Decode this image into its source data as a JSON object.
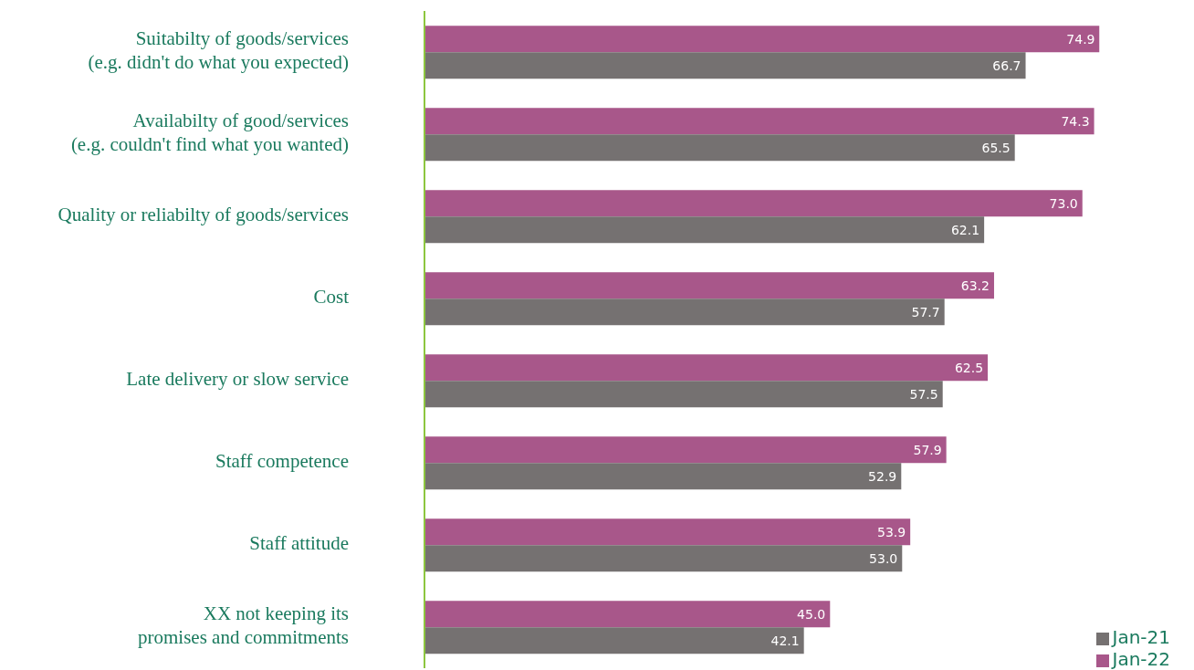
{
  "chart_data": {
    "type": "bar",
    "orientation": "horizontal",
    "categories": [
      "Suitabilty of goods/services\n(e.g. didn't do what you expected)",
      "Availabilty of good/services\n(e.g. couldn't find what you wanted)",
      "Quality or reliabilty of goods/services",
      "Cost",
      "Late delivery or slow service",
      "Staff competence",
      "Staff attitude",
      "XX not keeping its\npromises and commitments"
    ],
    "series": [
      {
        "name": "Jan-22",
        "color": "#a8578a",
        "values": [
          74.9,
          74.3,
          73.0,
          63.2,
          62.5,
          57.9,
          53.9,
          45.0
        ],
        "value_labels": [
          "74.9",
          "74.3",
          "73.0",
          "63.2",
          "62.5",
          "57.9",
          "53.9",
          "45.0"
        ]
      },
      {
        "name": "Jan-21",
        "color": "#757171",
        "values": [
          66.7,
          65.5,
          62.1,
          57.7,
          57.5,
          52.9,
          53.0,
          42.1
        ],
        "value_labels": [
          "66.7",
          "65.5",
          "62.1",
          "57.7",
          "57.5",
          "52.9",
          "53.0",
          "42.1"
        ]
      }
    ],
    "legend": "bottom right"
  }
}
